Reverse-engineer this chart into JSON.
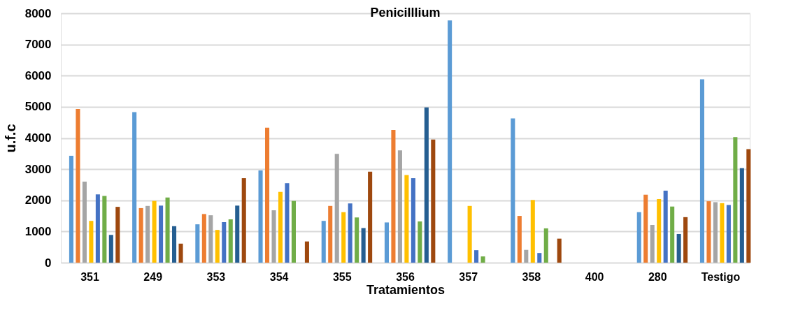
{
  "chart_data": {
    "type": "bar",
    "title": "Penicilllium",
    "xlabel": "Tratamientos",
    "ylabel": "u.f.c",
    "categories": [
      "351",
      "249",
      "353",
      "354",
      "355",
      "356",
      "357",
      "358",
      "400",
      "280",
      "Testigo"
    ],
    "series": [
      {
        "color": "#5b9bd5",
        "values": [
          3430,
          4830,
          1230,
          2960,
          1340,
          1290,
          7770,
          4630,
          0,
          1620,
          5880
        ]
      },
      {
        "color": "#ed7d31",
        "values": [
          4930,
          1750,
          1560,
          4330,
          1820,
          4260,
          0,
          1500,
          0,
          2180,
          1970
        ]
      },
      {
        "color": "#a5a5a5",
        "values": [
          2600,
          1820,
          1520,
          1680,
          3490,
          3600,
          0,
          410,
          0,
          1210,
          1940
        ]
      },
      {
        "color": "#ffc000",
        "values": [
          1340,
          1980,
          1050,
          2270,
          1620,
          2810,
          1820,
          2010,
          0,
          2040,
          1910
        ]
      },
      {
        "color": "#4472c4",
        "values": [
          2190,
          1830,
          1300,
          2550,
          1900,
          2710,
          400,
          310,
          0,
          2310,
          1850
        ]
      },
      {
        "color": "#70ad47",
        "values": [
          2140,
          2090,
          1390,
          1980,
          1450,
          1320,
          200,
          1100,
          0,
          1800,
          4030
        ]
      },
      {
        "color": "#255e91",
        "values": [
          890,
          1170,
          1830,
          0,
          1110,
          4980,
          0,
          0,
          0,
          920,
          3030
        ]
      },
      {
        "color": "#9e480e",
        "values": [
          1790,
          610,
          2710,
          680,
          2920,
          3950,
          0,
          770,
          0,
          1460,
          3640
        ]
      }
    ],
    "ylim": [
      0,
      8000
    ],
    "yticks": [
      0,
      1000,
      2000,
      3000,
      4000,
      5000,
      6000,
      7000,
      8000
    ],
    "grid": "y",
    "legend": false
  }
}
